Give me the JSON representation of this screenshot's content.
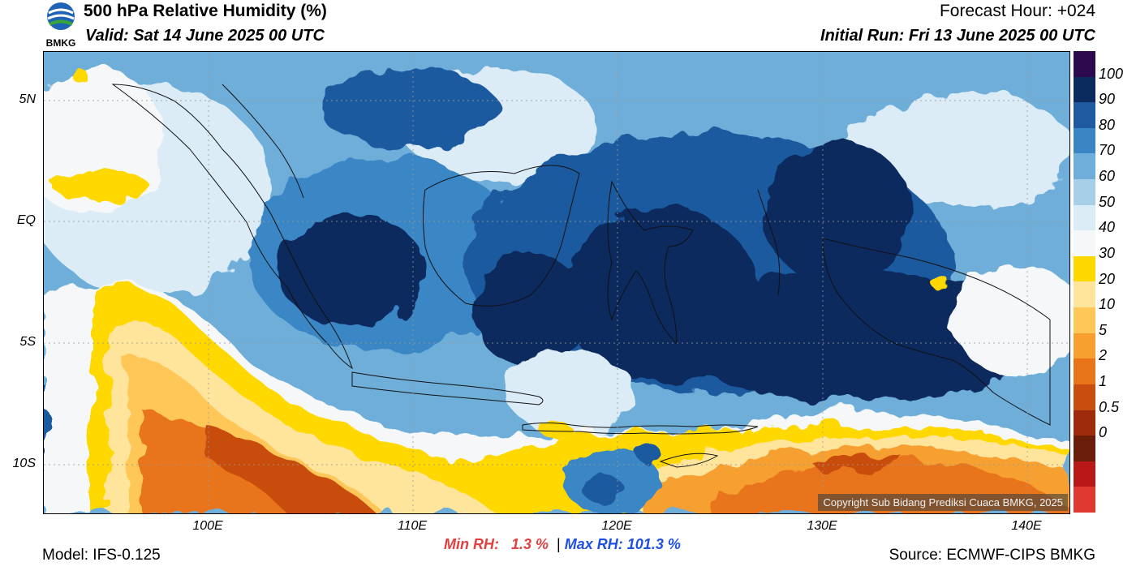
{
  "header": {
    "title": "500 hPa Relative Humidity (%)",
    "valid": "Valid: Sat 14 June 2025 00 UTC",
    "forecast_hour": "Forecast Hour: +024",
    "initial_run": "Initial Run: Fri 13 June 2025 00 UTC",
    "logo_text": "BMKG"
  },
  "map": {
    "lat_labels": [
      "5N",
      "EQ",
      "5S",
      "10S"
    ],
    "lon_labels": [
      "100E",
      "110E",
      "120E",
      "130E",
      "140E"
    ],
    "copyright": "Copyright Sub Bidang Prediksi Cuaca BMKG, 2025"
  },
  "colorbar": {
    "labels": [
      "100",
      "90",
      "80",
      "70",
      "60",
      "50",
      "40",
      "30",
      "20",
      "10",
      "5",
      "2",
      "1",
      "0.5",
      "0"
    ],
    "colors": [
      "#2d0a4e",
      "#0b2a5e",
      "#1f5aa0",
      "#3a86c4",
      "#6eaed8",
      "#a7cfe8",
      "#dcecf6",
      "#f5f7f8",
      "#ffd800",
      "#ffe49c",
      "#ffc658",
      "#f7a030",
      "#e8741a",
      "#c84e10",
      "#9e2c0c",
      "#6a1d08",
      "#b81818",
      "#e03a30"
    ]
  },
  "stats": {
    "min_label": "Min RH:",
    "min_value": "1.3 %",
    "separator": "|",
    "max_label": "Max RH:",
    "max_value": "101.3 %"
  },
  "footer": {
    "model": "Model: IFS-0.125",
    "source": "Source: ECMWF-CIPS BMKG"
  }
}
